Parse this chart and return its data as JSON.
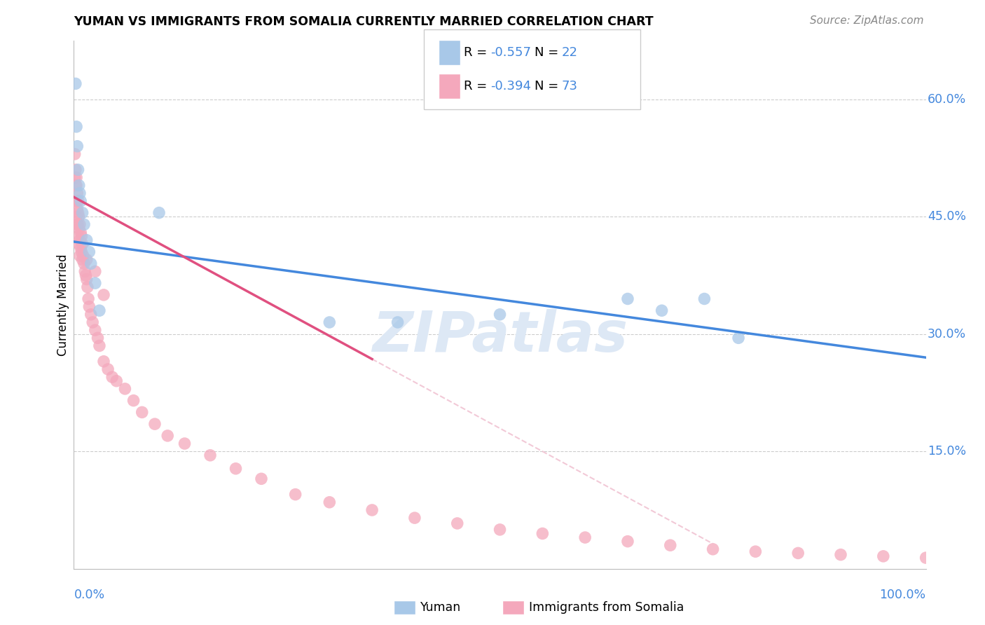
{
  "title": "YUMAN VS IMMIGRANTS FROM SOMALIA CURRENTLY MARRIED CORRELATION CHART",
  "source": "Source: ZipAtlas.com",
  "ylabel": "Currently Married",
  "yuman_R": -0.557,
  "yuman_N": 22,
  "somalia_R": -0.394,
  "somalia_N": 73,
  "yaxis_ticks": [
    0.0,
    0.15,
    0.3,
    0.45,
    0.6
  ],
  "yaxis_labels": [
    "",
    "15.0%",
    "30.0%",
    "45.0%",
    "60.0%"
  ],
  "xlim": [
    0.0,
    1.0
  ],
  "ylim": [
    0.0,
    0.675
  ],
  "background_color": "#ffffff",
  "grid_color": "#cccccc",
  "yuman_color": "#a8c8e8",
  "somalia_color": "#f4a8bc",
  "trend_yuman_color": "#4488dd",
  "trend_somalia_color": "#e05080",
  "trend_somalia_dashed_color": "#f0c0d0",
  "watermark_color": "#dde8f5",
  "legend_color": "#4488dd",
  "yuman_x": [
    0.002,
    0.003,
    0.004,
    0.005,
    0.006,
    0.007,
    0.008,
    0.01,
    0.012,
    0.015,
    0.018,
    0.02,
    0.025,
    0.03,
    0.1,
    0.3,
    0.5,
    0.65,
    0.69,
    0.74,
    0.78,
    0.38
  ],
  "yuman_y": [
    0.62,
    0.565,
    0.54,
    0.51,
    0.49,
    0.48,
    0.47,
    0.455,
    0.44,
    0.42,
    0.405,
    0.39,
    0.365,
    0.33,
    0.455,
    0.315,
    0.325,
    0.345,
    0.33,
    0.345,
    0.295,
    0.315
  ],
  "somalia_x": [
    0.001,
    0.001,
    0.002,
    0.002,
    0.002,
    0.003,
    0.003,
    0.003,
    0.003,
    0.004,
    0.004,
    0.004,
    0.005,
    0.005,
    0.005,
    0.005,
    0.006,
    0.006,
    0.006,
    0.007,
    0.007,
    0.007,
    0.008,
    0.008,
    0.009,
    0.009,
    0.01,
    0.01,
    0.011,
    0.012,
    0.013,
    0.014,
    0.015,
    0.016,
    0.017,
    0.018,
    0.02,
    0.022,
    0.025,
    0.028,
    0.03,
    0.035,
    0.04,
    0.045,
    0.05,
    0.06,
    0.07,
    0.08,
    0.095,
    0.11,
    0.13,
    0.16,
    0.19,
    0.22,
    0.26,
    0.3,
    0.35,
    0.4,
    0.45,
    0.5,
    0.55,
    0.6,
    0.65,
    0.7,
    0.75,
    0.8,
    0.85,
    0.9,
    0.95,
    1.0,
    0.035,
    0.025,
    0.015
  ],
  "somalia_y": [
    0.53,
    0.5,
    0.51,
    0.49,
    0.47,
    0.5,
    0.49,
    0.47,
    0.45,
    0.48,
    0.46,
    0.44,
    0.47,
    0.455,
    0.44,
    0.425,
    0.45,
    0.435,
    0.415,
    0.44,
    0.42,
    0.4,
    0.43,
    0.41,
    0.425,
    0.405,
    0.415,
    0.395,
    0.4,
    0.39,
    0.38,
    0.375,
    0.37,
    0.36,
    0.345,
    0.335,
    0.325,
    0.315,
    0.305,
    0.295,
    0.285,
    0.265,
    0.255,
    0.245,
    0.24,
    0.23,
    0.215,
    0.2,
    0.185,
    0.17,
    0.16,
    0.145,
    0.128,
    0.115,
    0.095,
    0.085,
    0.075,
    0.065,
    0.058,
    0.05,
    0.045,
    0.04,
    0.035,
    0.03,
    0.025,
    0.022,
    0.02,
    0.018,
    0.016,
    0.014,
    0.35,
    0.38,
    0.395
  ],
  "trend_yuman_x0": 0.0,
  "trend_yuman_y0": 0.418,
  "trend_yuman_x1": 1.0,
  "trend_yuman_y1": 0.27,
  "trend_somalia_solid_x0": 0.0,
  "trend_somalia_solid_y0": 0.475,
  "trend_somalia_solid_x1": 0.35,
  "trend_somalia_solid_y1": 0.268,
  "trend_somalia_dashed_x1": 0.75,
  "trend_somalia_dashed_y1": 0.032
}
